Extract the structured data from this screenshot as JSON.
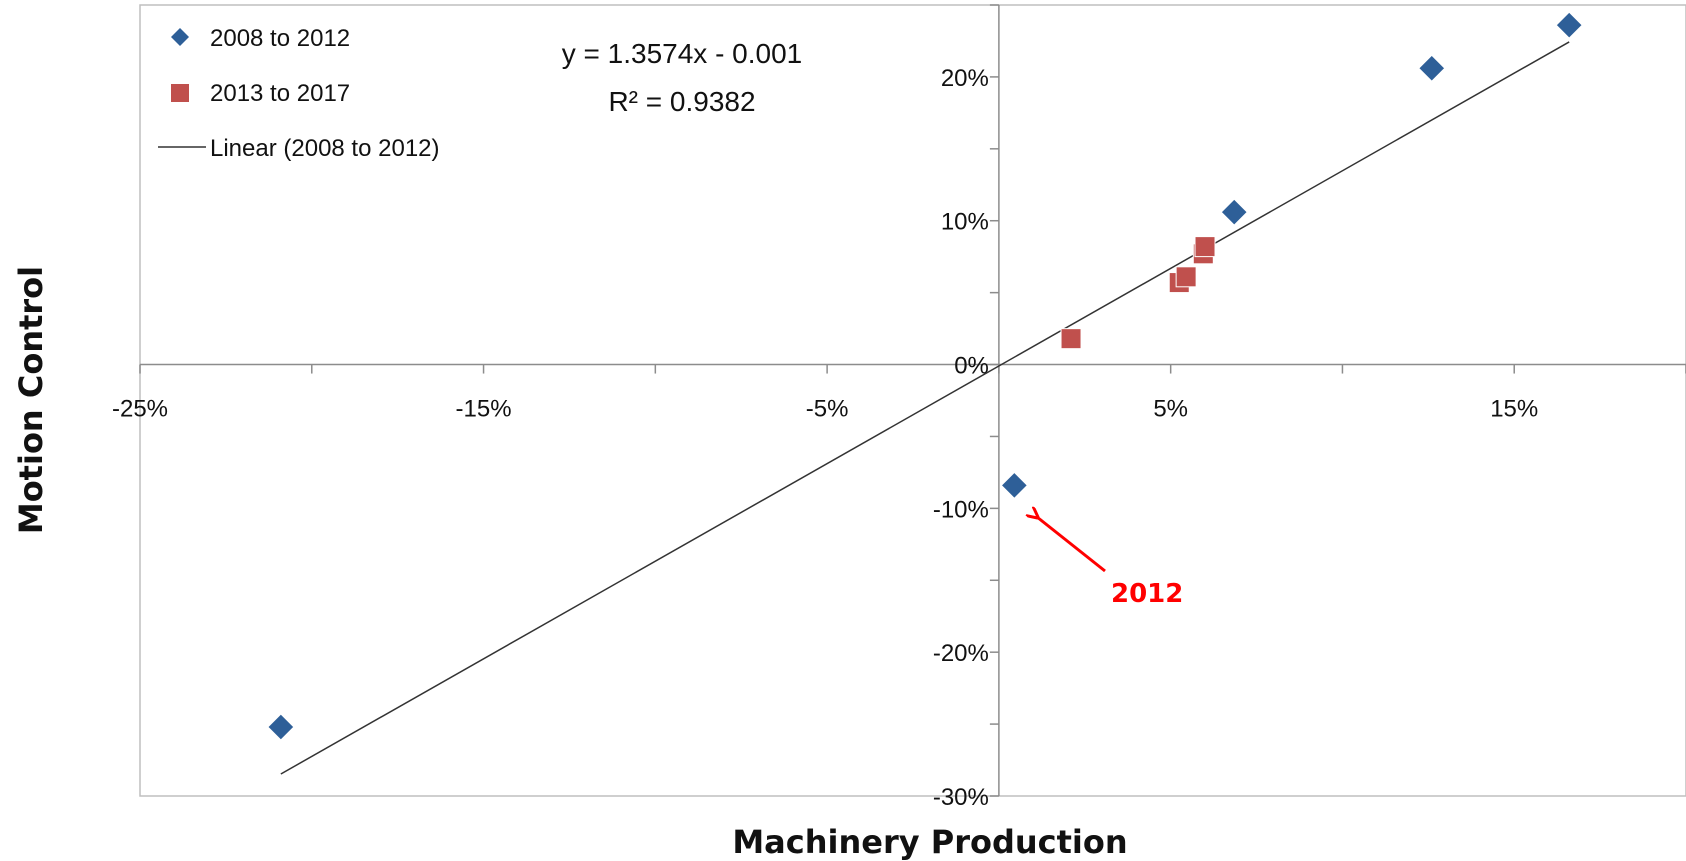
{
  "chart_data": {
    "type": "scatter",
    "xlabel": "Machinery Production",
    "ylabel": "Motion Control",
    "xlim": [
      -0.25,
      0.2
    ],
    "ylim": [
      -0.3,
      0.25
    ],
    "x_ticks": [
      -0.25,
      -0.15,
      -0.05,
      0.05,
      0.15
    ],
    "x_tick_labels": [
      "-25%",
      "-15%",
      "-5%",
      "5%",
      "15%"
    ],
    "y_ticks": [
      -0.3,
      -0.2,
      -0.1,
      0.0,
      0.1,
      0.2
    ],
    "y_tick_labels": [
      "-30%",
      "-20%",
      "-10%",
      "0%",
      "10%",
      "20%"
    ],
    "grid": false,
    "legend_position": "top-left",
    "series": [
      {
        "name": "2008 to 2012",
        "marker": "diamond",
        "color": "#2E5F98",
        "points": [
          {
            "x": -0.209,
            "y": -0.252
          },
          {
            "x": 0.0045,
            "y": -0.084
          },
          {
            "x": 0.0685,
            "y": 0.106
          },
          {
            "x": 0.126,
            "y": 0.206
          },
          {
            "x": 0.166,
            "y": 0.236
          }
        ]
      },
      {
        "name": "2013 to 2017",
        "marker": "square",
        "color": "#C0504D",
        "points": [
          {
            "x": 0.021,
            "y": 0.018
          },
          {
            "x": 0.0525,
            "y": 0.057
          },
          {
            "x": 0.0545,
            "y": 0.061
          },
          {
            "x": 0.0595,
            "y": 0.077
          },
          {
            "x": 0.06,
            "y": 0.082
          }
        ]
      }
    ],
    "trendline": {
      "name": "Linear (2008 to 2012)",
      "slope": 1.3574,
      "intercept": -0.001,
      "x_range": [
        -0.209,
        0.166
      ],
      "color": "#333333"
    },
    "equation": {
      "line1": "y = 1.3574x - 0.001",
      "line2": "R² = 0.9382"
    },
    "annotation": {
      "text": "2012",
      "color": "#FF0000",
      "target": {
        "x": 0.0045,
        "y": -0.084
      }
    }
  }
}
